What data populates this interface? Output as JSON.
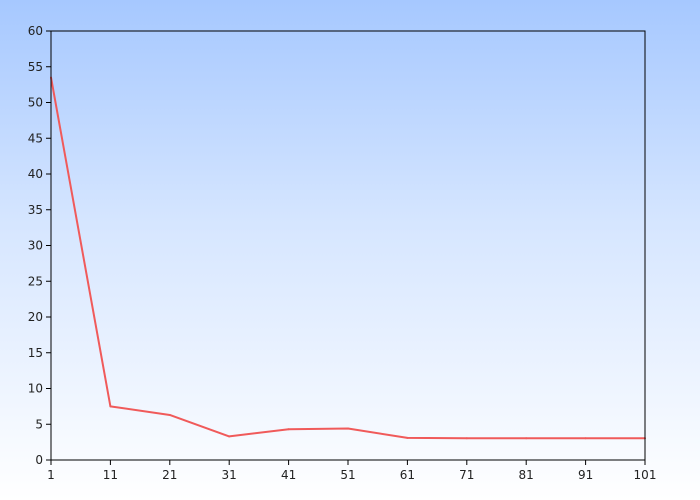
{
  "chart_data": {
    "type": "line",
    "title": "",
    "xlabel": "",
    "ylabel": "",
    "x": [
      1,
      11,
      21,
      31,
      41,
      51,
      61,
      71,
      81,
      91,
      101
    ],
    "series": [
      {
        "values": [
          53.5,
          7.5,
          6.3,
          3.3,
          4.3,
          4.4,
          3.1,
          3.05,
          3.05,
          3.05,
          3.05
        ],
        "color": "#f05a5a"
      }
    ],
    "xlim": [
      1,
      101
    ],
    "ylim": [
      0,
      60
    ],
    "xticks": [
      1,
      11,
      21,
      31,
      41,
      51,
      61,
      71,
      81,
      91,
      101
    ],
    "yticks": [
      0,
      5,
      10,
      15,
      20,
      25,
      30,
      35,
      40,
      45,
      50,
      55,
      60
    ],
    "grid": false,
    "legend": "none"
  },
  "colors": {
    "background_top": "#a6c8ff",
    "background_bottom": "#ffffff",
    "axis": "#000000"
  }
}
